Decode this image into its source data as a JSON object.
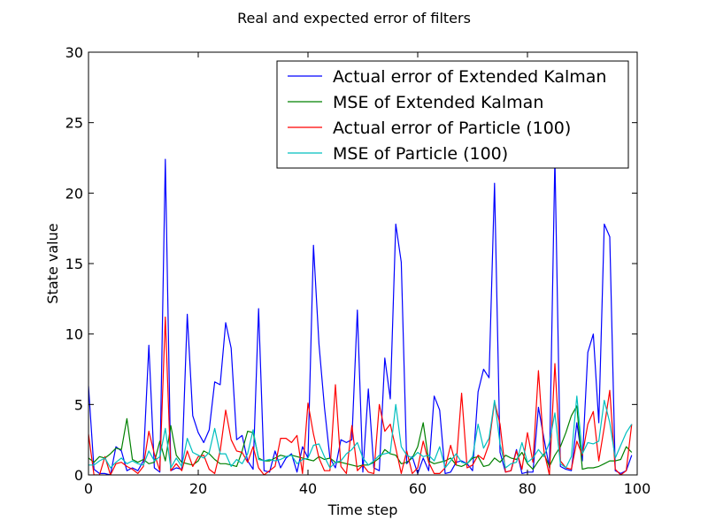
{
  "chart_data": {
    "type": "line",
    "title": "Real and expected error of filters",
    "xlabel": "Time step",
    "ylabel": "State value",
    "xlim": [
      0,
      100
    ],
    "ylim": [
      0,
      30
    ],
    "xticks": [
      0,
      20,
      40,
      60,
      80,
      100
    ],
    "yticks": [
      0,
      5,
      10,
      15,
      20,
      25,
      30
    ],
    "grid": false,
    "legend_position": "top-right",
    "x": [
      0,
      1,
      2,
      3,
      4,
      5,
      6,
      7,
      8,
      9,
      10,
      11,
      12,
      13,
      14,
      15,
      16,
      17,
      18,
      19,
      20,
      21,
      22,
      23,
      24,
      25,
      26,
      27,
      28,
      29,
      30,
      31,
      32,
      33,
      34,
      35,
      36,
      37,
      38,
      39,
      40,
      41,
      42,
      43,
      44,
      45,
      46,
      47,
      48,
      49,
      50,
      51,
      52,
      53,
      54,
      55,
      56,
      57,
      58,
      59,
      60,
      61,
      62,
      63,
      64,
      65,
      66,
      67,
      68,
      69,
      70,
      71,
      72,
      73,
      74,
      75,
      76,
      77,
      78,
      79,
      80,
      81,
      82,
      83,
      84,
      85,
      86,
      87,
      88,
      89,
      90,
      91,
      92,
      93,
      94,
      95,
      96,
      97,
      98,
      99
    ],
    "series": [
      {
        "name": "Actual error of Extended Kalman",
        "color": "#0000ff",
        "values": [
          6.3,
          0.4,
          0.1,
          0.1,
          0.0,
          2.0,
          1.7,
          0.3,
          0.5,
          0.3,
          1.0,
          9.2,
          0.5,
          0.2,
          22.4,
          0.3,
          0.5,
          0.4,
          11.4,
          4.2,
          3.0,
          2.3,
          3.2,
          6.6,
          6.4,
          10.8,
          9.0,
          2.5,
          2.8,
          1.0,
          0.4,
          11.8,
          0.3,
          0.2,
          1.7,
          0.5,
          1.2,
          1.5,
          0.2,
          2.0,
          1.2,
          16.3,
          9.3,
          4.8,
          1.2,
          0.5,
          2.5,
          2.3,
          2.5,
          11.7,
          0.2,
          6.1,
          0.5,
          0.3,
          8.3,
          5.4,
          17.8,
          15.1,
          0.8,
          1.3,
          0.1,
          1.2,
          0.3,
          5.6,
          4.6,
          0.1,
          0.2,
          0.9,
          1.0,
          0.8,
          0.3,
          5.9,
          7.5,
          6.9,
          20.7,
          1.6,
          0.2,
          0.3,
          1.8,
          0.1,
          0.2,
          0.2,
          4.8,
          2.6,
          0.5,
          22.5,
          0.6,
          0.4,
          0.3,
          3.7,
          1.0,
          8.7,
          10.0,
          3.7,
          17.8,
          16.9,
          0.3,
          0.1,
          0.3,
          1.4
        ]
      },
      {
        "name": "MSE of Extended Kalman",
        "color": "#008000",
        "values": [
          1.2,
          0.9,
          1.3,
          1.2,
          1.5,
          1.9,
          1.8,
          4.0,
          1.1,
          0.9,
          1.1,
          0.8,
          0.9,
          2.4,
          1.0,
          3.5,
          1.4,
          0.9,
          0.8,
          0.7,
          1.0,
          1.7,
          1.5,
          1.1,
          0.8,
          0.8,
          0.7,
          0.6,
          1.7,
          3.1,
          3.0,
          1.2,
          1.0,
          1.0,
          1.2,
          1.4,
          1.3,
          1.4,
          1.3,
          1.2,
          1.1,
          1.0,
          1.3,
          1.1,
          1.2,
          0.9,
          0.9,
          0.8,
          0.7,
          0.6,
          0.7,
          0.7,
          0.9,
          1.2,
          1.8,
          1.5,
          1.4,
          0.8,
          0.9,
          1.2,
          2.0,
          3.7,
          1.0,
          0.8,
          0.9,
          1.0,
          1.2,
          0.7,
          0.6,
          0.8,
          1.2,
          1.3,
          0.6,
          0.7,
          1.2,
          0.9,
          1.4,
          1.2,
          1.1,
          1.6,
          0.8,
          0.4,
          1.0,
          1.5,
          0.6,
          1.4,
          2.0,
          3.0,
          4.2,
          4.9,
          0.4,
          0.5,
          0.5,
          0.6,
          0.8,
          1.0,
          1.0,
          1.1,
          2.0,
          1.6
        ]
      },
      {
        "name": "Actual error of Particle (100)",
        "color": "#ff0000",
        "values": [
          2.9,
          0.0,
          0.0,
          1.3,
          0.0,
          0.8,
          0.9,
          0.6,
          0.4,
          0.1,
          0.6,
          3.1,
          1.5,
          0.3,
          11.2,
          0.3,
          0.8,
          0.3,
          1.7,
          0.6,
          1.3,
          1.4,
          0.4,
          0.1,
          1.7,
          4.6,
          2.5,
          1.7,
          1.6,
          0.9,
          2.0,
          0.5,
          0.0,
          0.3,
          0.6,
          2.6,
          2.6,
          2.3,
          2.8,
          0.1,
          5.1,
          2.9,
          1.2,
          0.3,
          0.3,
          6.4,
          0.6,
          0.1,
          3.5,
          0.3,
          0.7,
          0.2,
          0.1,
          5.0,
          3.1,
          3.6,
          1.9,
          0.1,
          1.7,
          0.1,
          0.5,
          2.4,
          0.9,
          0.1,
          0.1,
          0.5,
          2.1,
          0.7,
          5.8,
          0.5,
          0.7,
          1.4,
          1.1,
          2.2,
          5.2,
          3.6,
          0.2,
          0.3,
          1.7,
          0.4,
          3.0,
          0.9,
          7.4,
          1.7,
          0.0,
          7.9,
          1.0,
          0.5,
          0.4,
          2.4,
          1.4,
          3.6,
          4.5,
          1.0,
          3.4,
          6.0,
          0.4,
          0.0,
          0.3,
          3.6
        ]
      },
      {
        "name": "MSE of Particle (100)",
        "color": "#00bfbf",
        "values": [
          0.7,
          0.7,
          1.0,
          1.2,
          0.5,
          0.9,
          1.2,
          0.8,
          1.0,
          0.8,
          0.7,
          1.7,
          1.0,
          1.3,
          3.3,
          0.5,
          1.2,
          0.6,
          2.6,
          1.6,
          1.4,
          1.2,
          1.6,
          3.3,
          1.5,
          1.5,
          0.6,
          1.1,
          0.8,
          1.5,
          3.2,
          1.1,
          1.0,
          1.1,
          1.0,
          1.1,
          1.3,
          1.4,
          0.8,
          1.1,
          1.2,
          2.1,
          2.2,
          1.3,
          0.5,
          0.9,
          1.0,
          1.5,
          1.8,
          2.3,
          1.2,
          0.7,
          1.0,
          1.4,
          1.5,
          1.6,
          5.0,
          2.0,
          1.4,
          1.2,
          1.6,
          1.3,
          1.4,
          1.0,
          2.0,
          0.5,
          1.0,
          1.5,
          0.9,
          0.8,
          1.3,
          3.6,
          1.9,
          2.6,
          5.3,
          2.2,
          0.5,
          0.8,
          0.9,
          2.3,
          0.9,
          1.2,
          1.8,
          1.3,
          2.3,
          4.4,
          0.8,
          0.5,
          1.3,
          5.6,
          1.5,
          2.3,
          2.2,
          2.4,
          5.3,
          3.7,
          1.2,
          2.1,
          3.0,
          3.6
        ]
      }
    ]
  }
}
